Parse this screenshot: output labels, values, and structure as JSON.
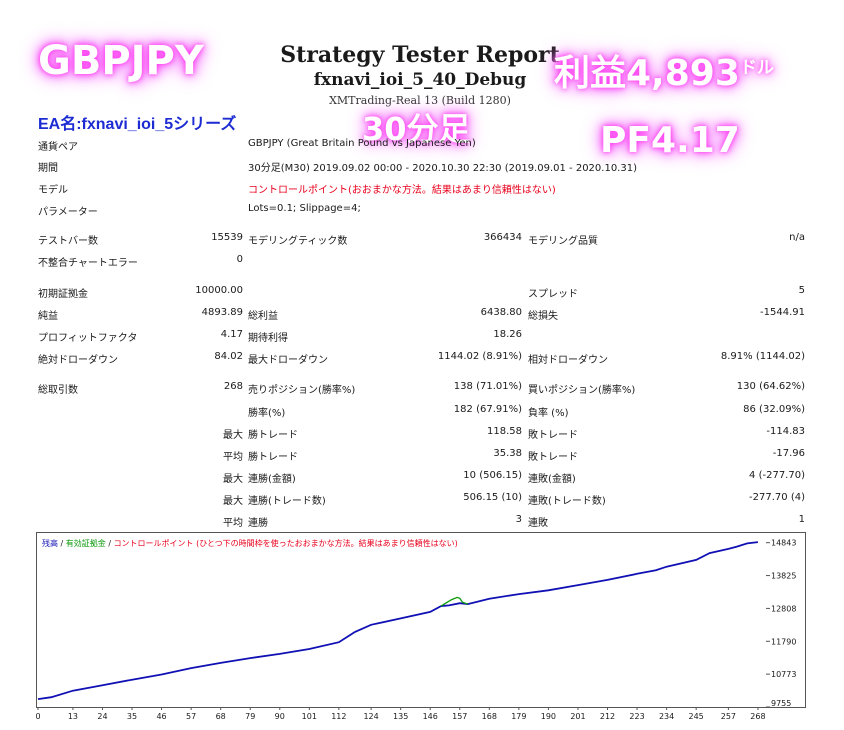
{
  "overlay": {
    "pair": "GBPJPY",
    "profit_text": "利益4,893",
    "profit_unit": "ドル",
    "timeframe": "30分足",
    "pf_text": "PF4.17",
    "ea_name": "EA名:fxnavi_ioi_5シリーズ"
  },
  "header": {
    "title": "Strategy Tester Report",
    "ea": "fxnavi_ioi_5_40_Debug",
    "build": "XMTrading-Real 13 (Build 1280)"
  },
  "info": {
    "symbol_label": "通貨ペア",
    "symbol_value": "GBPJPY (Great Britain Pound vs Japanese Yen)",
    "period_label": "期間",
    "period_value": "30分足(M30) 2019.09.02 00:00 - 2020.10.30 22:30 (2019.09.01 - 2020.10.31)",
    "model_label": "モデル",
    "model_value": "コントロールポイント(おおまかな方法。結果はあまり信頼性はない)",
    "params_label": "パラメーター",
    "params_value": "Lots=0.1; Slippage=4;"
  },
  "stats": {
    "bars_label": "テストバー数",
    "bars_value": "15539",
    "ticks_label": "モデリングティック数",
    "ticks_value": "366434",
    "quality_label": "モデリング品質",
    "quality_value": "n/a",
    "errors_label": "不整合チャートエラー",
    "errors_value": "0",
    "deposit_label": "初期証拠金",
    "deposit_value": "10000.00",
    "spread_label": "スプレッド",
    "spread_value": "5",
    "net_label": "純益",
    "net_value": "4893.89",
    "gross_profit_label": "総利益",
    "gross_profit_value": "6438.80",
    "gross_loss_label": "総損失",
    "gross_loss_value": "-1544.91",
    "pf_label": "プロフィットファクタ",
    "pf_value": "4.17",
    "expected_label": "期待利得",
    "expected_value": "18.26",
    "abs_dd_label": "絶対ドローダウン",
    "abs_dd_value": "84.02",
    "max_dd_label": "最大ドローダウン",
    "max_dd_value": "1144.02 (8.91%)",
    "rel_dd_label": "相対ドローダウン",
    "rel_dd_value": "8.91% (1144.02)",
    "trades_label": "総取引数",
    "trades_value": "268",
    "short_label": "売りポジション(勝率%)",
    "short_value": "138 (71.01%)",
    "long_label": "買いポジション(勝率%)",
    "long_value": "130 (64.62%)",
    "win_pct_label": "勝率(%)",
    "win_pct_value": "182 (67.91%)",
    "loss_pct_label": "負率 (%)",
    "loss_pct_value": "86 (32.09%)",
    "max_word": "最大",
    "avg_word": "平均",
    "largest_win_label": "勝トレード",
    "largest_win_value": "118.58",
    "largest_loss_label": "敗トレード",
    "largest_loss_value": "-114.83",
    "avg_win_label": "勝トレード",
    "avg_win_value": "35.38",
    "avg_loss_label": "敗トレード",
    "avg_loss_value": "-17.96",
    "cons_wins_money_label": "連勝(金額)",
    "cons_wins_money_value": "10 (506.15)",
    "cons_losses_money_label": "連敗(金額)",
    "cons_losses_money_value": "4 (-277.70)",
    "cons_wins_count_label": "連勝(トレード数)",
    "cons_wins_count_value": "506.15 (10)",
    "cons_losses_count_label": "連敗(トレード数)",
    "cons_losses_count_value": "-277.70 (4)",
    "avg_cons_wins_label": "連勝",
    "avg_cons_wins_value": "3",
    "avg_cons_losses_label": "連敗",
    "avg_cons_losses_value": "1"
  },
  "chart_data": {
    "type": "line",
    "legend": {
      "balance": "残高",
      "sep1": " / ",
      "equity": "有効証拠金",
      "sep2": " / ",
      "model": "コントロールポイント (ひとつ下の時間枠を使ったおおまかな方法。結果はあまり信頼性はない)"
    },
    "colors": {
      "balance": "#1010b4",
      "equity": "#0a9a0a",
      "model": "#e8001c"
    },
    "xticks": [
      0,
      13,
      24,
      35,
      46,
      57,
      68,
      79,
      90,
      101,
      112,
      124,
      135,
      146,
      157,
      168,
      179,
      190,
      201,
      212,
      223,
      234,
      245,
      257,
      268
    ],
    "yticks": [
      9755,
      10773,
      11790,
      12808,
      13825,
      14843
    ],
    "xlim": [
      0,
      271
    ],
    "ylim": [
      9755,
      15050
    ],
    "series": [
      {
        "key": "balance",
        "x": [
          0,
          5,
          13,
          24,
          35,
          46,
          57,
          68,
          79,
          90,
          101,
          112,
          118,
          124,
          135,
          146,
          150,
          153,
          157,
          160,
          168,
          179,
          190,
          201,
          212,
          223,
          230,
          234,
          245,
          250,
          257,
          260,
          264,
          268
        ],
        "y": [
          10000,
          10060,
          10260,
          10430,
          10600,
          10760,
          10960,
          11120,
          11270,
          11400,
          11550,
          11760,
          12080,
          12300,
          12500,
          12700,
          12880,
          12900,
          12970,
          12940,
          13110,
          13250,
          13370,
          13530,
          13690,
          13880,
          13990,
          14100,
          14310,
          14520,
          14650,
          14720,
          14820,
          14860
        ]
      },
      {
        "key": "equity",
        "x": [
          150,
          152,
          154,
          156,
          157,
          158,
          160
        ],
        "y": [
          12880,
          12980,
          13080,
          13150,
          13120,
          13000,
          12940
        ]
      }
    ]
  }
}
